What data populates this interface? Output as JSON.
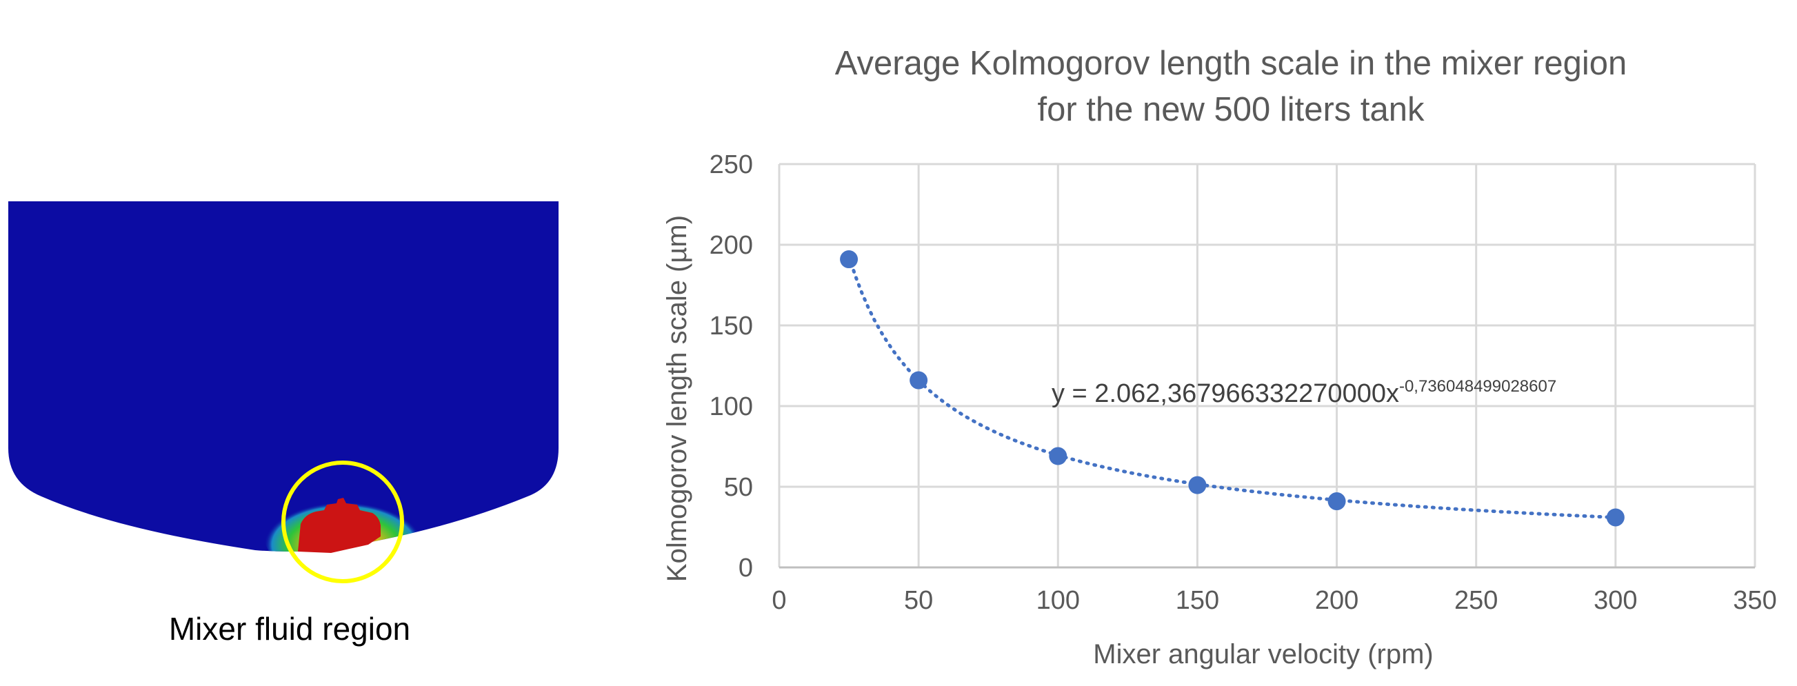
{
  "figure": {
    "caption": "Mixer fluid region",
    "colors": {
      "tank_fluid": "#0c0ca3",
      "mixer_body": "#cc1414",
      "highlight_circle": "#ffff00"
    }
  },
  "chart_data": {
    "type": "scatter",
    "title_line1": "Average Kolmogorov length scale in the mixer region",
    "title_line2": "for the new 500 liters tank",
    "xlabel": "Mixer angular velocity (rpm)",
    "ylabel": "Kolmogorov length scale (µm)",
    "xlim": [
      0,
      350
    ],
    "ylim": [
      0,
      250
    ],
    "xticks": [
      "0",
      "50",
      "100",
      "150",
      "200",
      "250",
      "300",
      "350"
    ],
    "yticks": [
      "0",
      "50",
      "100",
      "150",
      "200",
      "250"
    ],
    "grid": true,
    "series": [
      {
        "x": [
          25,
          50,
          100,
          150,
          200,
          300
        ],
        "y": [
          191,
          116,
          69,
          51,
          41,
          31
        ],
        "color": "#4472c4"
      }
    ],
    "trendline": {
      "type": "power",
      "style": "dotted",
      "color": "#4472c4",
      "coefficient": 2062.36796633227,
      "exponent": -0.736048499028607,
      "x_range": [
        25,
        300
      ],
      "equation_base": "y = 2.062,367966332270000x",
      "equation_exponent": "-0,736048499028607"
    }
  }
}
